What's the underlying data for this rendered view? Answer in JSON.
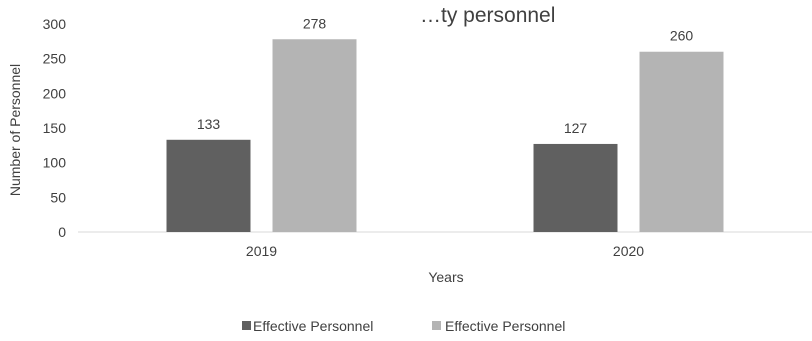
{
  "chart_data": {
    "type": "bar",
    "title": "…ty personnel",
    "xlabel": "Years",
    "ylabel": "Number of Personnel",
    "categories": [
      "2019",
      "2020"
    ],
    "series": [
      {
        "name": "Effective Personnel",
        "values": [
          133,
          127
        ],
        "color": "#606060"
      },
      {
        "name": "Effective Personnel",
        "values": [
          278,
          260
        ],
        "color": "#b4b4b4"
      }
    ],
    "ylim": [
      0,
      300
    ],
    "yticks": [
      0,
      50,
      100,
      150,
      200,
      250,
      300
    ],
    "grid": false,
    "legend_position": "bottom",
    "data_labels": true
  }
}
